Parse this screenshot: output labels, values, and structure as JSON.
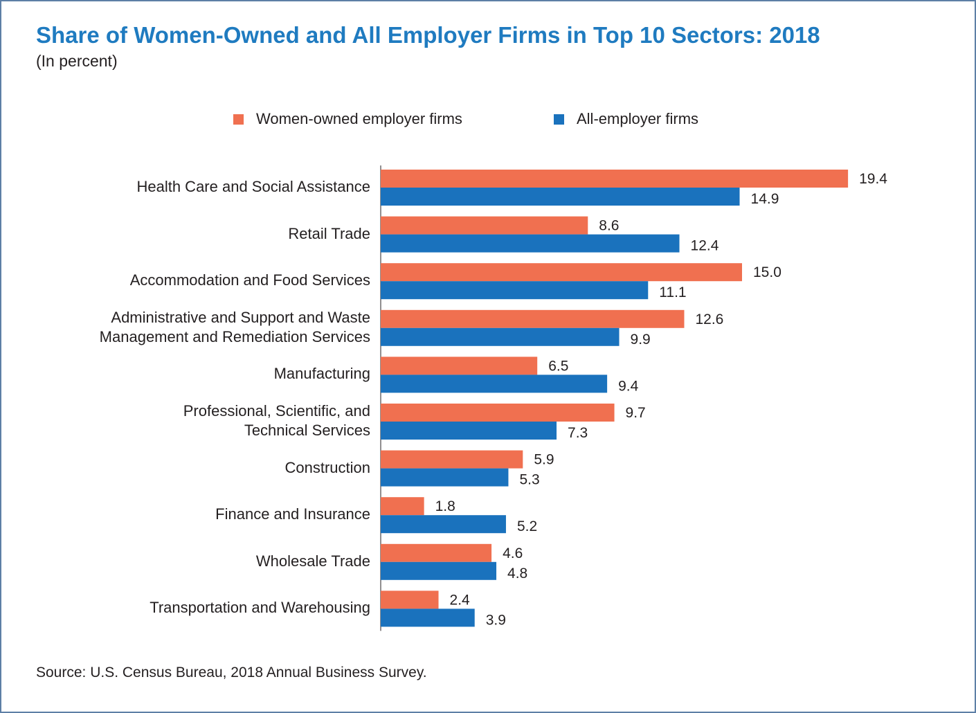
{
  "header": {
    "title": "Share of Women-Owned and All Employer Firms in Top 10 Sectors: 2018",
    "subtitle": "(In percent)"
  },
  "legend": {
    "women": "Women-owned employer firms",
    "all": "All-employer firms"
  },
  "colors": {
    "women": "#f07050",
    "all": "#1a72bd",
    "title": "#1f7bc0"
  },
  "footer": {
    "source": "Source: U.S. Census Bureau, 2018 Annual Business Survey."
  },
  "chart_data": {
    "type": "bar",
    "orientation": "horizontal",
    "title": "Share of Women-Owned and All Employer Firms in Top 10 Sectors: 2018",
    "subtitle": "(In percent)",
    "categories": [
      [
        "Health Care and Social Assistance"
      ],
      [
        "Retail Trade"
      ],
      [
        "Accommodation and Food Services"
      ],
      [
        "Administrative and Support and Waste",
        "Management and Remediation Services"
      ],
      [
        "Manufacturing"
      ],
      [
        "Professional, Scientific, and",
        "Technical Services"
      ],
      [
        "Construction"
      ],
      [
        "Finance and Insurance"
      ],
      [
        "Wholesale Trade"
      ],
      [
        "Transportation and Warehousing"
      ]
    ],
    "series": [
      {
        "name": "Women-owned employer firms",
        "values": [
          19.4,
          8.6,
          15.0,
          12.6,
          6.5,
          9.7,
          5.9,
          1.8,
          4.6,
          2.4
        ],
        "labels": [
          "19.4",
          "8.6",
          "15.0",
          "12.6",
          "6.5",
          "9.7",
          "5.9",
          "1.8",
          "4.6",
          "2.4"
        ]
      },
      {
        "name": "All-employer firms",
        "values": [
          14.9,
          12.4,
          11.1,
          9.9,
          9.4,
          7.3,
          5.3,
          5.2,
          4.8,
          3.9
        ],
        "labels": [
          "14.9",
          "12.4",
          "11.1",
          "9.9",
          "9.4",
          "7.3",
          "5.3",
          "5.2",
          "4.8",
          "3.9"
        ]
      }
    ],
    "xlabel": "",
    "ylabel": "",
    "xlim": [
      0,
      20
    ],
    "grid": false,
    "legend_position": "top-center"
  }
}
